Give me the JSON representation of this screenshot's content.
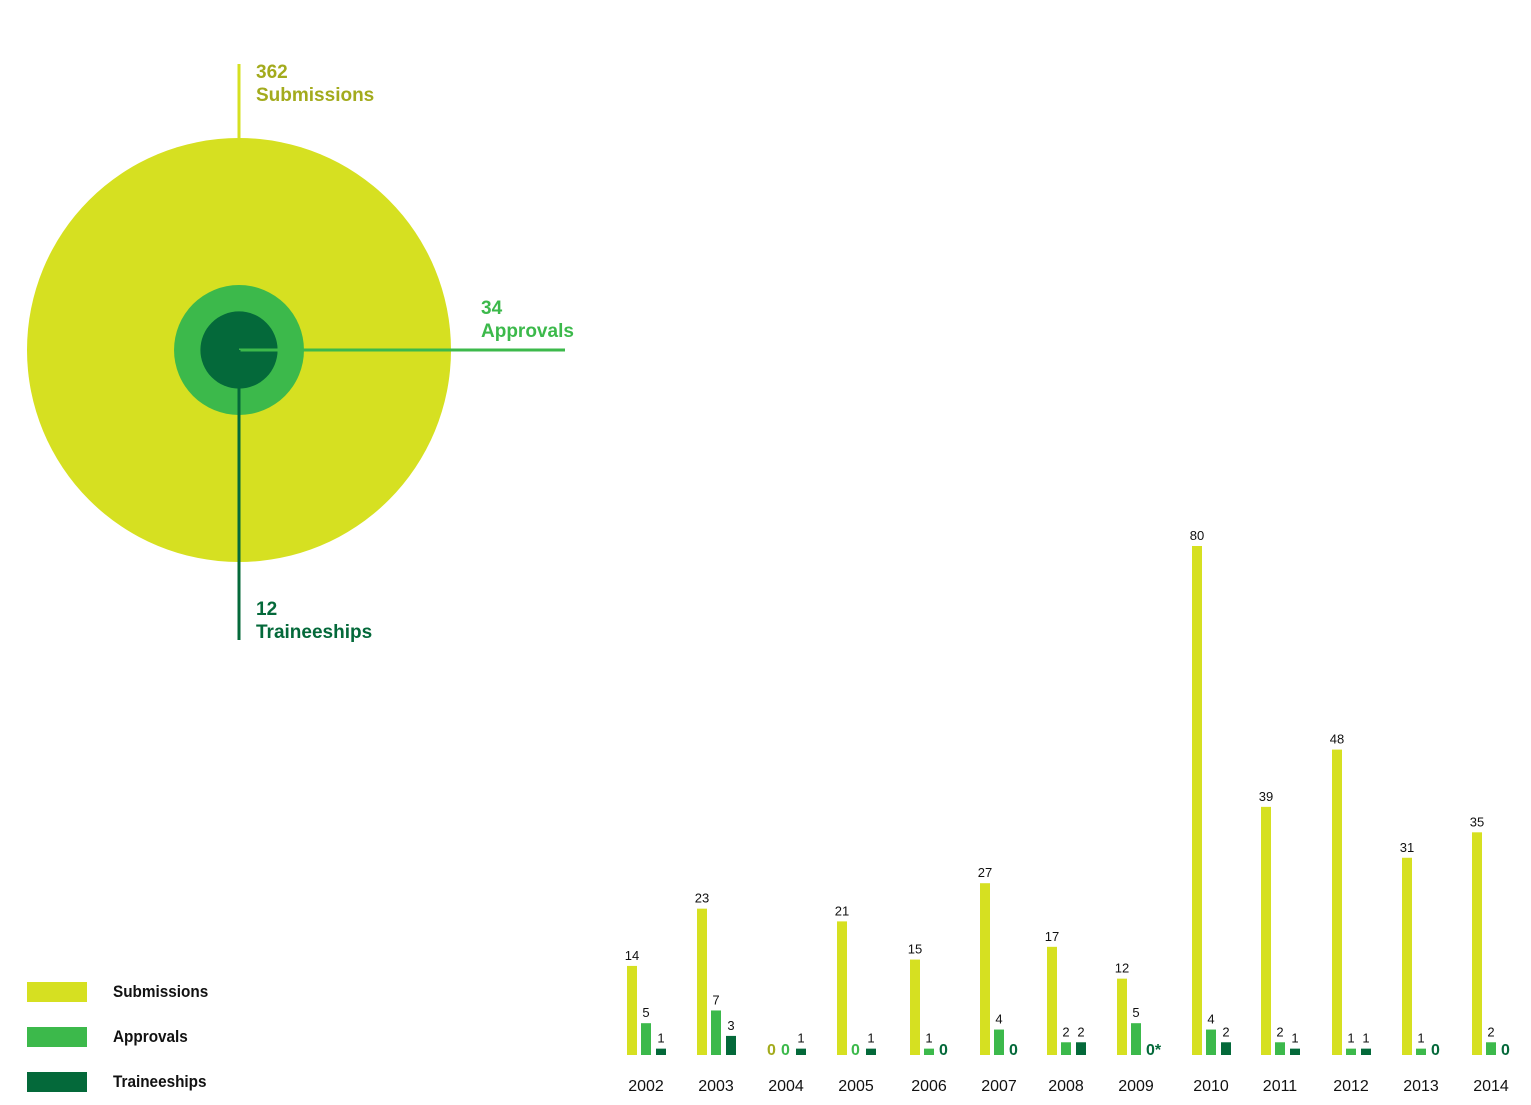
{
  "colors": {
    "submissions": "#d6e021",
    "approvals": "#3cb94b",
    "traineeships": "#04693a",
    "submissions_text": "#a3ab1d",
    "text": "#111111"
  },
  "totals": {
    "submissions": {
      "value": "362",
      "label": "Submissions"
    },
    "approvals": {
      "value": "34",
      "label": "Approvals"
    },
    "traineeships": {
      "value": "12",
      "label": "Traineeships"
    }
  },
  "legend": [
    {
      "label": "Submissions",
      "color_key": "submissions"
    },
    {
      "label": "Approvals",
      "color_key": "approvals"
    },
    {
      "label": "Traineeships",
      "color_key": "traineeships"
    }
  ],
  "chart_data": [
    {
      "type": "pie",
      "labels": [
        "Submissions",
        "Approvals",
        "Traineeships"
      ],
      "values": [
        362,
        34,
        12
      ]
    },
    {
      "type": "bar",
      "categories": [
        "2002",
        "2003",
        "2004",
        "2005",
        "2006",
        "2007",
        "2008",
        "2009",
        "2010",
        "2011",
        "2012",
        "2013",
        "2014"
      ],
      "series": [
        {
          "name": "Submissions",
          "values": [
            14,
            23,
            0,
            21,
            15,
            27,
            17,
            12,
            80,
            39,
            48,
            31,
            35
          ],
          "labels": [
            "14",
            "23",
            "0",
            "21",
            "15",
            "27",
            "17",
            "12",
            "80",
            "39",
            "48",
            "31",
            "35"
          ]
        },
        {
          "name": "Approvals",
          "values": [
            5,
            7,
            0,
            0,
            1,
            4,
            2,
            5,
            4,
            2,
            1,
            1,
            2
          ],
          "labels": [
            "5",
            "7",
            "0",
            "0",
            "1",
            "4",
            "2",
            "5",
            "4",
            "2",
            "1",
            "1",
            "2"
          ]
        },
        {
          "name": "Traineeships",
          "values": [
            1,
            3,
            1,
            1,
            0,
            0,
            2,
            0,
            2,
            1,
            1,
            0,
            0
          ],
          "labels": [
            "1",
            "3",
            "1",
            "1",
            "0",
            "0",
            "2",
            "0*",
            "2",
            "1",
            "1",
            "0",
            "0"
          ]
        }
      ],
      "ylim": [
        0,
        80
      ]
    }
  ]
}
